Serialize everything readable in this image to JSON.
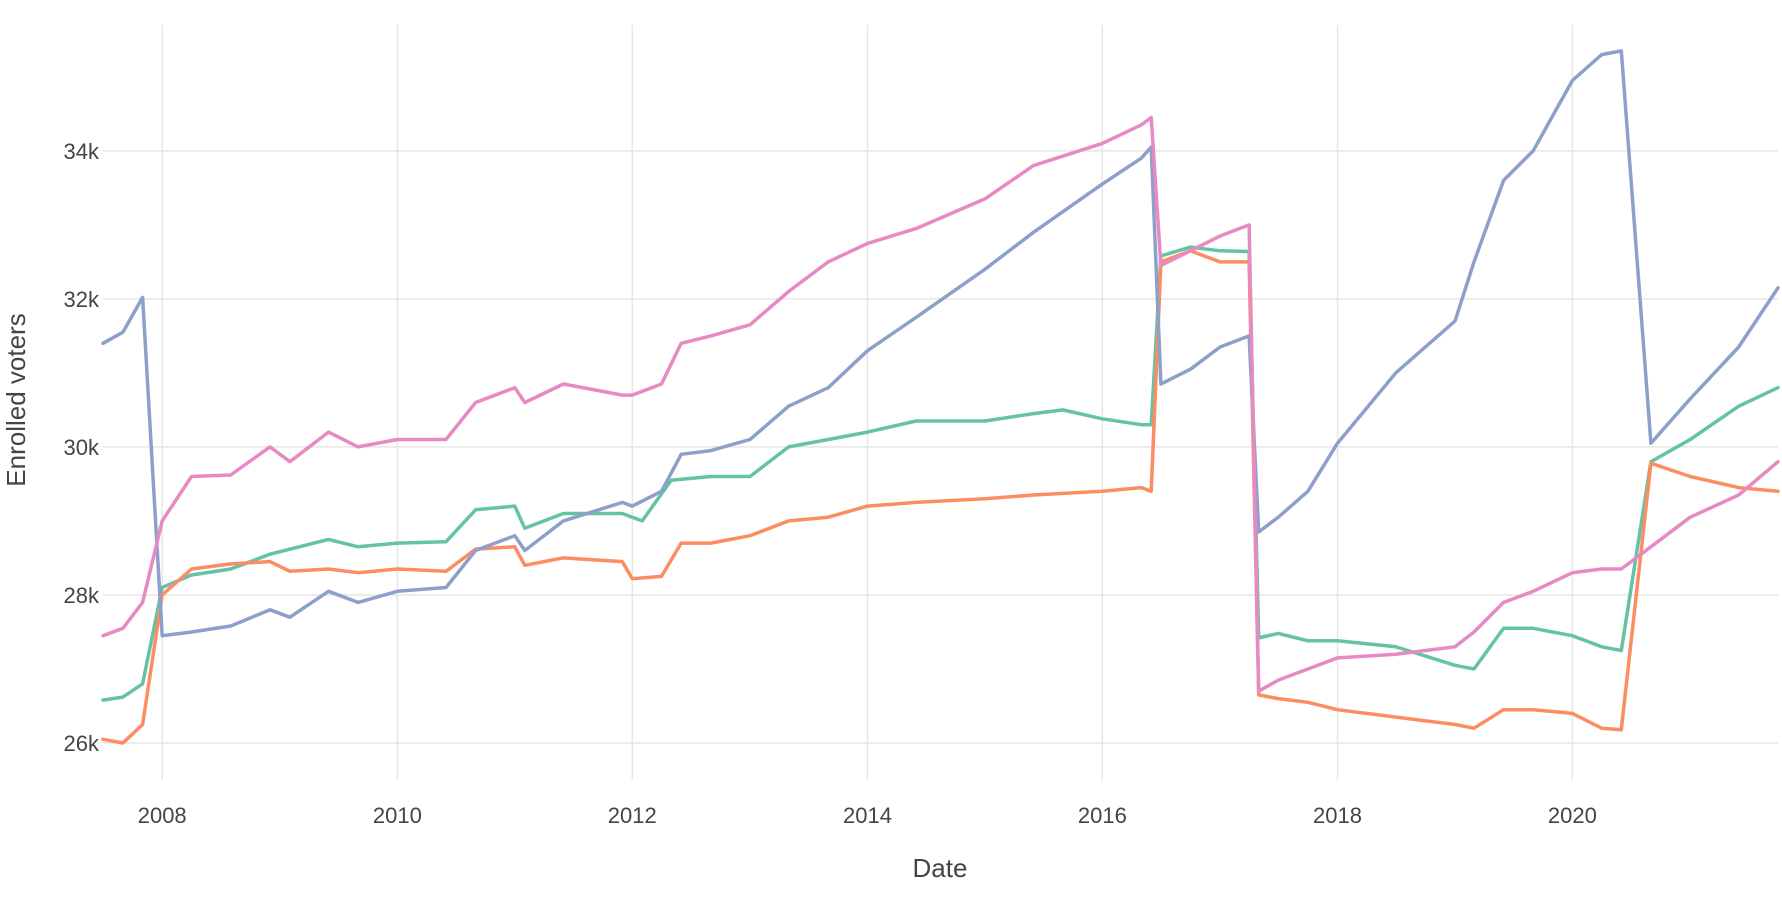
{
  "chart_data": {
    "type": "line",
    "xlabel": "Date",
    "ylabel": "Enrolled voters",
    "xlim": [
      "2007-07-01",
      "2021-10-01"
    ],
    "ylim": [
      25500,
      35700
    ],
    "x_ticks": [
      {
        "value": "2008-01-01",
        "label": "2008"
      },
      {
        "value": "2010-01-01",
        "label": "2010"
      },
      {
        "value": "2012-01-01",
        "label": "2012"
      },
      {
        "value": "2014-01-01",
        "label": "2014"
      },
      {
        "value": "2016-01-01",
        "label": "2016"
      },
      {
        "value": "2018-01-01",
        "label": "2018"
      },
      {
        "value": "2020-01-01",
        "label": "2020"
      }
    ],
    "y_ticks": [
      {
        "value": 26000,
        "label": "26k"
      },
      {
        "value": 28000,
        "label": "28k"
      },
      {
        "value": 30000,
        "label": "30k"
      },
      {
        "value": 32000,
        "label": "32k"
      },
      {
        "value": 34000,
        "label": "34k"
      }
    ],
    "grid": true,
    "legend": "none",
    "series": [
      {
        "color": "#66c2a5",
        "points": [
          [
            "2007-07-01",
            26580
          ],
          [
            "2007-09-01",
            26620
          ],
          [
            "2007-11-01",
            26800
          ],
          [
            "2008-01-01",
            28100
          ],
          [
            "2008-04-01",
            28270
          ],
          [
            "2008-08-01",
            28350
          ],
          [
            "2008-12-01",
            28550
          ],
          [
            "2009-06-01",
            28750
          ],
          [
            "2009-09-01",
            28650
          ],
          [
            "2010-01-01",
            28700
          ],
          [
            "2010-06-01",
            28720
          ],
          [
            "2010-09-01",
            29150
          ],
          [
            "2011-01-01",
            29200
          ],
          [
            "2011-02-01",
            28900
          ],
          [
            "2011-06-01",
            29100
          ],
          [
            "2011-12-01",
            29100
          ],
          [
            "2012-02-01",
            29000
          ],
          [
            "2012-05-01",
            29550
          ],
          [
            "2012-09-01",
            29600
          ],
          [
            "2013-01-01",
            29600
          ],
          [
            "2013-05-01",
            30000
          ],
          [
            "2013-09-01",
            30100
          ],
          [
            "2014-01-01",
            30200
          ],
          [
            "2014-06-01",
            30350
          ],
          [
            "2015-01-01",
            30350
          ],
          [
            "2015-06-01",
            30450
          ],
          [
            "2015-09-01",
            30500
          ],
          [
            "2016-01-01",
            30380
          ],
          [
            "2016-05-01",
            30300
          ],
          [
            "2016-06-01",
            30300
          ],
          [
            "2016-07-01",
            32580
          ],
          [
            "2016-10-01",
            32700
          ],
          [
            "2017-01-01",
            32650
          ],
          [
            "2017-04-01",
            32640
          ],
          [
            "2017-05-01",
            27420
          ],
          [
            "2017-07-01",
            27480
          ],
          [
            "2017-10-01",
            27380
          ],
          [
            "2018-01-01",
            27380
          ],
          [
            "2018-07-01",
            27300
          ],
          [
            "2019-01-01",
            27050
          ],
          [
            "2019-03-01",
            27000
          ],
          [
            "2019-06-01",
            27550
          ],
          [
            "2019-09-01",
            27550
          ],
          [
            "2020-01-01",
            27450
          ],
          [
            "2020-04-01",
            27300
          ],
          [
            "2020-06-01",
            27250
          ],
          [
            "2020-09-01",
            29800
          ],
          [
            "2021-01-01",
            30100
          ],
          [
            "2021-06-01",
            30550
          ],
          [
            "2021-10-01",
            30800
          ]
        ]
      },
      {
        "color": "#fc8d62",
        "points": [
          [
            "2007-07-01",
            26050
          ],
          [
            "2007-09-01",
            26000
          ],
          [
            "2007-11-01",
            26250
          ],
          [
            "2008-01-01",
            28000
          ],
          [
            "2008-04-01",
            28350
          ],
          [
            "2008-08-01",
            28420
          ],
          [
            "2008-12-01",
            28450
          ],
          [
            "2009-02-01",
            28320
          ],
          [
            "2009-06-01",
            28350
          ],
          [
            "2009-09-01",
            28300
          ],
          [
            "2010-01-01",
            28350
          ],
          [
            "2010-06-01",
            28320
          ],
          [
            "2010-09-01",
            28620
          ],
          [
            "2011-01-01",
            28650
          ],
          [
            "2011-02-01",
            28400
          ],
          [
            "2011-06-01",
            28500
          ],
          [
            "2011-12-01",
            28450
          ],
          [
            "2012-01-01",
            28220
          ],
          [
            "2012-04-01",
            28250
          ],
          [
            "2012-06-01",
            28700
          ],
          [
            "2012-09-01",
            28700
          ],
          [
            "2013-01-01",
            28800
          ],
          [
            "2013-05-01",
            29000
          ],
          [
            "2013-09-01",
            29050
          ],
          [
            "2014-01-01",
            29200
          ],
          [
            "2014-06-01",
            29250
          ],
          [
            "2015-01-01",
            29300
          ],
          [
            "2015-06-01",
            29350
          ],
          [
            "2016-01-01",
            29400
          ],
          [
            "2016-05-01",
            29450
          ],
          [
            "2016-06-01",
            29400
          ],
          [
            "2016-07-01",
            32500
          ],
          [
            "2016-10-01",
            32650
          ],
          [
            "2017-01-01",
            32500
          ],
          [
            "2017-04-01",
            32500
          ],
          [
            "2017-05-01",
            26650
          ],
          [
            "2017-07-01",
            26600
          ],
          [
            "2017-10-01",
            26550
          ],
          [
            "2018-01-01",
            26450
          ],
          [
            "2018-07-01",
            26350
          ],
          [
            "2019-01-01",
            26250
          ],
          [
            "2019-03-01",
            26200
          ],
          [
            "2019-06-01",
            26450
          ],
          [
            "2019-09-01",
            26450
          ],
          [
            "2020-01-01",
            26400
          ],
          [
            "2020-04-01",
            26200
          ],
          [
            "2020-06-01",
            26180
          ],
          [
            "2020-09-01",
            29780
          ],
          [
            "2021-01-01",
            29600
          ],
          [
            "2021-06-01",
            29450
          ],
          [
            "2021-10-01",
            29400
          ]
        ]
      },
      {
        "color": "#8da0cb",
        "points": [
          [
            "2007-07-01",
            31400
          ],
          [
            "2007-09-01",
            31550
          ],
          [
            "2007-11-01",
            32020
          ],
          [
            "2008-01-01",
            27450
          ],
          [
            "2008-04-01",
            27500
          ],
          [
            "2008-08-01",
            27580
          ],
          [
            "2008-12-01",
            27800
          ],
          [
            "2009-02-01",
            27700
          ],
          [
            "2009-06-01",
            28050
          ],
          [
            "2009-09-01",
            27900
          ],
          [
            "2010-01-01",
            28050
          ],
          [
            "2010-06-01",
            28100
          ],
          [
            "2010-09-01",
            28600
          ],
          [
            "2011-01-01",
            28800
          ],
          [
            "2011-02-01",
            28600
          ],
          [
            "2011-06-01",
            29000
          ],
          [
            "2011-12-01",
            29250
          ],
          [
            "2012-01-01",
            29200
          ],
          [
            "2012-04-01",
            29400
          ],
          [
            "2012-06-01",
            29900
          ],
          [
            "2012-09-01",
            29950
          ],
          [
            "2013-01-01",
            30100
          ],
          [
            "2013-05-01",
            30550
          ],
          [
            "2013-09-01",
            30800
          ],
          [
            "2014-01-01",
            31300
          ],
          [
            "2014-06-01",
            31750
          ],
          [
            "2015-01-01",
            32400
          ],
          [
            "2015-06-01",
            32900
          ],
          [
            "2016-01-01",
            33550
          ],
          [
            "2016-05-01",
            33900
          ],
          [
            "2016-06-01",
            34050
          ],
          [
            "2016-07-01",
            30850
          ],
          [
            "2016-10-01",
            31050
          ],
          [
            "2017-01-01",
            31350
          ],
          [
            "2017-04-01",
            31500
          ],
          [
            "2017-05-01",
            28850
          ],
          [
            "2017-07-01",
            29050
          ],
          [
            "2017-10-01",
            29400
          ],
          [
            "2018-01-01",
            30050
          ],
          [
            "2018-07-01",
            31000
          ],
          [
            "2019-01-01",
            31700
          ],
          [
            "2019-03-01",
            32500
          ],
          [
            "2019-06-01",
            33600
          ],
          [
            "2019-09-01",
            34000
          ],
          [
            "2020-01-01",
            34950
          ],
          [
            "2020-04-01",
            35300
          ],
          [
            "2020-06-01",
            35350
          ],
          [
            "2020-09-01",
            30050
          ],
          [
            "2021-01-01",
            30650
          ],
          [
            "2021-06-01",
            31350
          ],
          [
            "2021-10-01",
            32150
          ]
        ]
      },
      {
        "color": "#e78ac3",
        "points": [
          [
            "2007-07-01",
            27450
          ],
          [
            "2007-09-01",
            27550
          ],
          [
            "2007-11-01",
            27900
          ],
          [
            "2008-01-01",
            29000
          ],
          [
            "2008-04-01",
            29600
          ],
          [
            "2008-08-01",
            29620
          ],
          [
            "2008-12-01",
            30000
          ],
          [
            "2009-02-01",
            29800
          ],
          [
            "2009-06-01",
            30200
          ],
          [
            "2009-09-01",
            30000
          ],
          [
            "2010-01-01",
            30100
          ],
          [
            "2010-06-01",
            30100
          ],
          [
            "2010-09-01",
            30600
          ],
          [
            "2011-01-01",
            30800
          ],
          [
            "2011-02-01",
            30600
          ],
          [
            "2011-06-01",
            30850
          ],
          [
            "2011-12-01",
            30700
          ],
          [
            "2012-01-01",
            30700
          ],
          [
            "2012-04-01",
            30850
          ],
          [
            "2012-06-01",
            31400
          ],
          [
            "2012-09-01",
            31500
          ],
          [
            "2013-01-01",
            31650
          ],
          [
            "2013-05-01",
            32100
          ],
          [
            "2013-09-01",
            32500
          ],
          [
            "2014-01-01",
            32750
          ],
          [
            "2014-06-01",
            32950
          ],
          [
            "2015-01-01",
            33350
          ],
          [
            "2015-06-01",
            33800
          ],
          [
            "2016-01-01",
            34100
          ],
          [
            "2016-05-01",
            34350
          ],
          [
            "2016-06-01",
            34450
          ],
          [
            "2016-07-01",
            32450
          ],
          [
            "2016-10-01",
            32650
          ],
          [
            "2017-01-01",
            32850
          ],
          [
            "2017-04-01",
            33000
          ],
          [
            "2017-05-01",
            26700
          ],
          [
            "2017-07-01",
            26850
          ],
          [
            "2017-10-01",
            27000
          ],
          [
            "2018-01-01",
            27150
          ],
          [
            "2018-07-01",
            27200
          ],
          [
            "2019-01-01",
            27300
          ],
          [
            "2019-03-01",
            27500
          ],
          [
            "2019-06-01",
            27900
          ],
          [
            "2019-09-01",
            28050
          ],
          [
            "2020-01-01",
            28300
          ],
          [
            "2020-04-01",
            28350
          ],
          [
            "2020-06-01",
            28350
          ],
          [
            "2020-09-01",
            28650
          ],
          [
            "2021-01-01",
            29050
          ],
          [
            "2021-06-01",
            29350
          ],
          [
            "2021-10-01",
            29800
          ]
        ]
      }
    ]
  }
}
